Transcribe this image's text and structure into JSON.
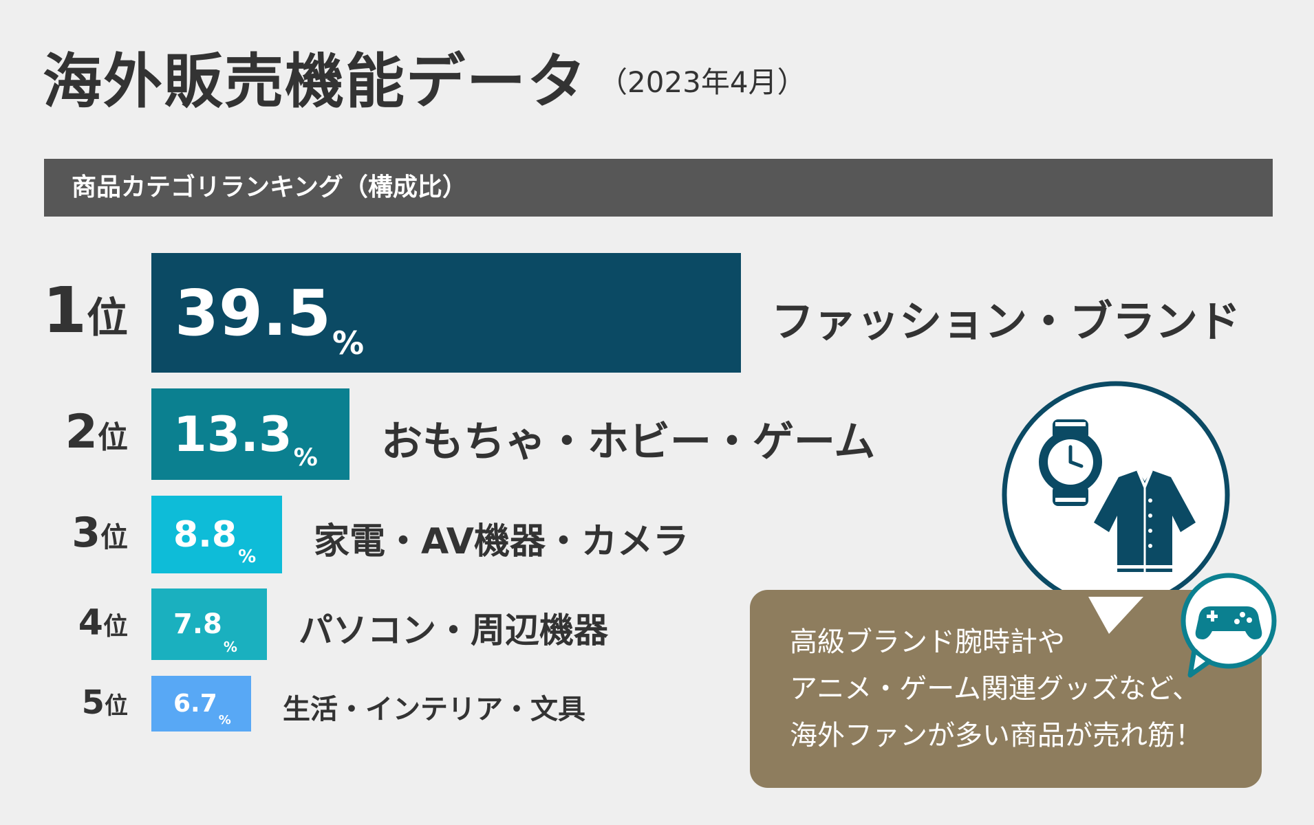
{
  "title": "海外販売機能データ",
  "title_sub": "（2023年4月）",
  "section_header": "商品カテゴリランキング（構成比）",
  "rank_suffix": "位",
  "percent_sign": "%",
  "note_lines": [
    "高級ブランド腕時計や",
    "アニメ・ゲーム関連グッズなど、",
    "海外ファンが多い商品が売れ筋！"
  ],
  "icons": [
    "wristwatch-icon",
    "jacket-icon",
    "game-controller-icon"
  ],
  "colors": {
    "background": "#efefef",
    "header": "#575757",
    "rank1": "#0b4a64",
    "rank2": "#0b8090",
    "rank3": "#0ebcd8",
    "rank4": "#1ab0bf",
    "rank5": "#58a8f5",
    "note_box": "#8e7d5e",
    "icon": "#0b4a64"
  },
  "chart_data": {
    "type": "bar",
    "orientation": "horizontal",
    "title": "商品カテゴリランキング（構成比）",
    "categories": [
      "ファッション・ブランド",
      "おもちゃ・ホビー・ゲーム",
      "家電・AV機器・カメラ",
      "パソコン・周辺機器",
      "生活・インテリア・文具"
    ],
    "ranks": [
      "1",
      "2",
      "3",
      "4",
      "5"
    ],
    "values": [
      39.5,
      13.3,
      8.8,
      7.8,
      6.7
    ],
    "value_labels": [
      "39.5",
      "13.3",
      "8.8",
      "7.8",
      "6.7"
    ],
    "unit": "%"
  }
}
